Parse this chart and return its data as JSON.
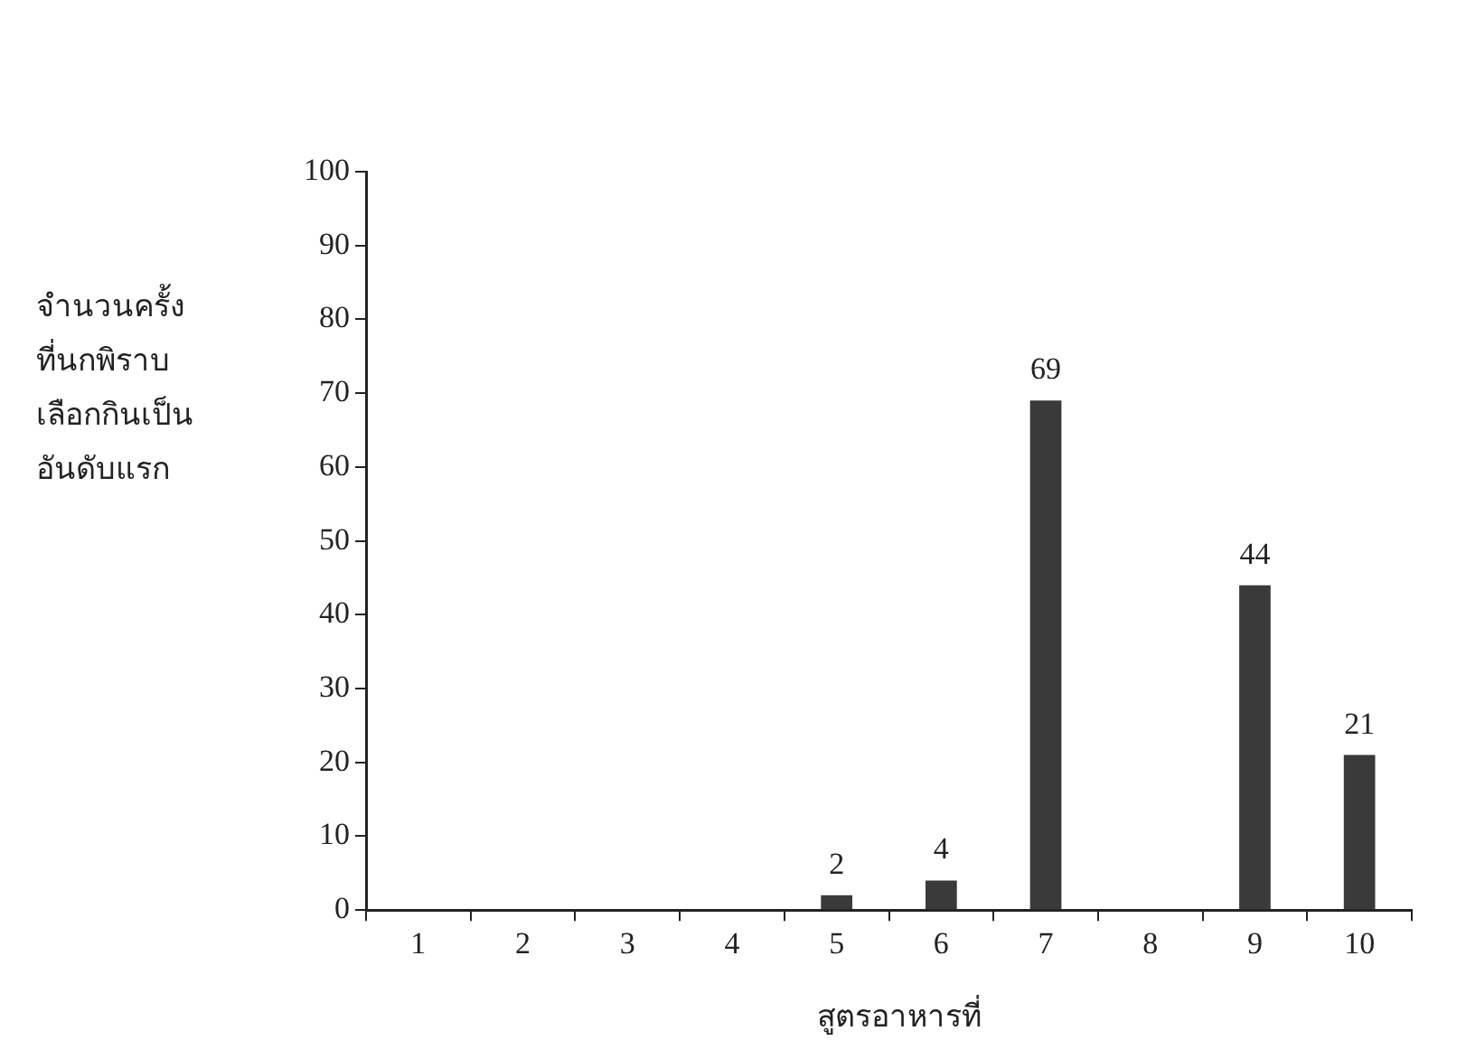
{
  "chart_data": {
    "type": "bar",
    "xlabel": "สูตรอาหารที่",
    "ylabel": "จำนวนครั้ง\nที่นกพิราบ\nเลือกกินเป็น\nอันดับแรก",
    "categories": [
      "1",
      "2",
      "3",
      "4",
      "5",
      "6",
      "7",
      "8",
      "9",
      "10"
    ],
    "values": [
      0,
      0,
      0,
      0,
      2,
      4,
      69,
      0,
      44,
      21
    ],
    "value_labels": [
      null,
      null,
      null,
      null,
      "2",
      "4",
      "69",
      null,
      "44",
      "21"
    ],
    "color": "#3a3a3a",
    "ylim": [
      0,
      100
    ],
    "yticks": [
      0,
      10,
      20,
      30,
      40,
      50,
      60,
      70,
      80,
      90,
      100
    ],
    "grid": false,
    "legend": false
  }
}
